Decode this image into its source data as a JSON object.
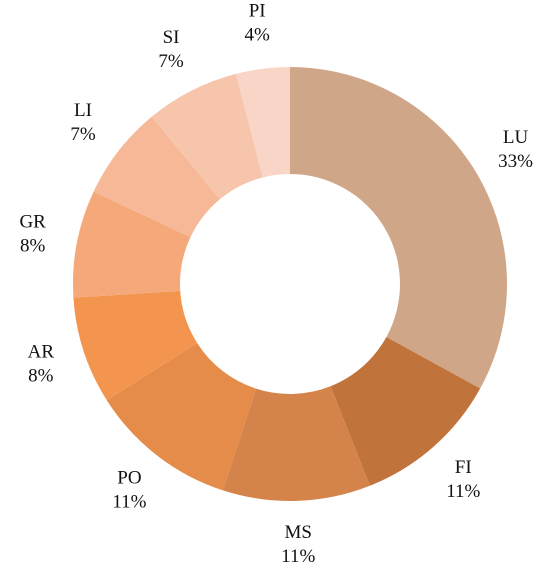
{
  "chart_data": {
    "type": "donut",
    "categories": [
      "LU",
      "FI",
      "MS",
      "PO",
      "AR",
      "GR",
      "LI",
      "SI",
      "PI"
    ],
    "values": [
      33,
      11,
      11,
      11,
      8,
      8,
      7,
      7,
      4
    ],
    "value_labels": [
      "33%",
      "11%",
      "11%",
      "11%",
      "8%",
      "8%",
      "7%",
      "7%",
      "4%"
    ],
    "colors": [
      "#cfa688",
      "#c0733b",
      "#d4844a",
      "#e58c4a",
      "#f4954f",
      "#f5a97a",
      "#f6b896",
      "#f7c4ac",
      "#f8d5c6"
    ]
  }
}
